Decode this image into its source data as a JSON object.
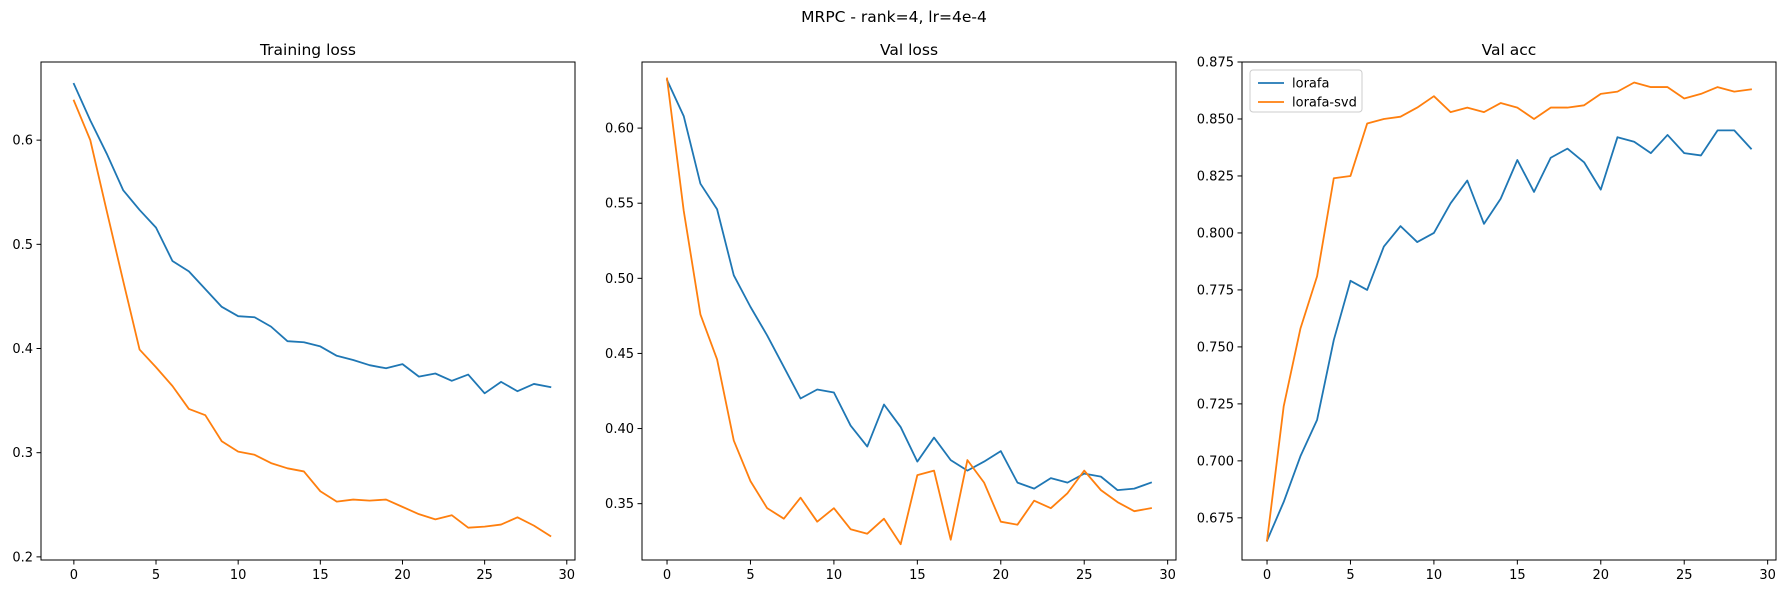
{
  "figure": {
    "suptitle": "MRPC - rank=4, lr=4e-4"
  },
  "colors": {
    "lorafa": "#1f77b4",
    "lorafa-svd": "#ff7f0e"
  },
  "chart_data": [
    {
      "type": "line",
      "title": "Training loss",
      "xlabel": "",
      "ylabel": "",
      "xlim": [
        -2,
        30.5
      ],
      "ylim": [
        0.197,
        0.675
      ],
      "xticks": [
        0,
        5,
        10,
        15,
        20,
        25,
        30
      ],
      "yticks": [
        0.2,
        0.3,
        0.4,
        0.5,
        0.6
      ],
      "ytick_labels": [
        "0.2",
        "0.3",
        "0.4",
        "0.5",
        "0.6"
      ],
      "grid": false,
      "legend": null,
      "x": [
        0,
        1,
        2,
        3,
        4,
        5,
        6,
        7,
        8,
        9,
        10,
        11,
        12,
        13,
        14,
        15,
        16,
        17,
        18,
        19,
        20,
        21,
        22,
        23,
        24,
        25,
        26,
        27,
        28,
        29
      ],
      "series": [
        {
          "name": "lorafa",
          "color": "#1f77b4",
          "values": [
            0.654,
            0.619,
            0.587,
            0.552,
            0.533,
            0.516,
            0.484,
            0.474,
            0.457,
            0.44,
            0.431,
            0.43,
            0.421,
            0.407,
            0.406,
            0.402,
            0.393,
            0.389,
            0.384,
            0.381,
            0.385,
            0.373,
            0.376,
            0.369,
            0.375,
            0.357,
            0.368,
            0.359,
            0.366,
            0.363
          ]
        },
        {
          "name": "lorafa-svd",
          "color": "#ff7f0e",
          "values": [
            0.638,
            0.6,
            0.532,
            0.465,
            0.399,
            0.382,
            0.364,
            0.342,
            0.336,
            0.311,
            0.301,
            0.298,
            0.29,
            0.285,
            0.282,
            0.263,
            0.253,
            0.255,
            0.254,
            0.255,
            0.248,
            0.241,
            0.236,
            0.24,
            0.228,
            0.229,
            0.231,
            0.238,
            0.23,
            0.22
          ]
        }
      ]
    },
    {
      "type": "line",
      "title": "Val loss",
      "xlabel": "",
      "ylabel": "",
      "xlim": [
        -1.5,
        30.5
      ],
      "ylim": [
        0.3125,
        0.644
      ],
      "xticks": [
        0,
        5,
        10,
        15,
        20,
        25,
        30
      ],
      "yticks": [
        0.35,
        0.4,
        0.45,
        0.5,
        0.55,
        0.6
      ],
      "ytick_labels": [
        "0.35",
        "0.40",
        "0.45",
        "0.50",
        "0.55",
        "0.60"
      ],
      "grid": false,
      "legend": null,
      "x": [
        0,
        1,
        2,
        3,
        4,
        5,
        6,
        7,
        8,
        9,
        10,
        11,
        12,
        13,
        14,
        15,
        16,
        17,
        18,
        19,
        20,
        21,
        22,
        23,
        24,
        25,
        26,
        27,
        28,
        29
      ],
      "series": [
        {
          "name": "lorafa",
          "color": "#1f77b4",
          "values": [
            0.632,
            0.608,
            0.563,
            0.546,
            0.502,
            0.481,
            0.462,
            0.441,
            0.42,
            0.426,
            0.424,
            0.402,
            0.388,
            0.416,
            0.401,
            0.378,
            0.394,
            0.379,
            0.372,
            0.378,
            0.385,
            0.364,
            0.36,
            0.367,
            0.364,
            0.37,
            0.368,
            0.359,
            0.36,
            0.364
          ]
        },
        {
          "name": "lorafa-svd",
          "color": "#ff7f0e",
          "values": [
            0.633,
            0.545,
            0.476,
            0.446,
            0.392,
            0.365,
            0.347,
            0.34,
            0.354,
            0.338,
            0.347,
            0.333,
            0.33,
            0.34,
            0.323,
            0.369,
            0.372,
            0.326,
            0.379,
            0.364,
            0.338,
            0.336,
            0.352,
            0.347,
            0.357,
            0.372,
            0.359,
            0.351,
            0.345,
            0.347
          ]
        }
      ]
    },
    {
      "type": "line",
      "title": "Val acc",
      "xlabel": "",
      "ylabel": "",
      "xlim": [
        -1.5,
        30.5
      ],
      "ylim": [
        0.6565,
        0.875
      ],
      "xticks": [
        0,
        5,
        10,
        15,
        20,
        25,
        30
      ],
      "yticks": [
        0.675,
        0.7,
        0.725,
        0.75,
        0.775,
        0.8,
        0.825,
        0.85,
        0.875
      ],
      "ytick_labels": [
        "0.675",
        "0.700",
        "0.725",
        "0.750",
        "0.775",
        "0.800",
        "0.825",
        "0.850",
        "0.875"
      ],
      "grid": false,
      "legend": "upper left",
      "x": [
        0,
        1,
        2,
        3,
        4,
        5,
        6,
        7,
        8,
        9,
        10,
        11,
        12,
        13,
        14,
        15,
        16,
        17,
        18,
        19,
        20,
        21,
        22,
        23,
        24,
        25,
        26,
        27,
        28,
        29
      ],
      "series": [
        {
          "name": "lorafa",
          "color": "#1f77b4",
          "values": [
            0.665,
            0.682,
            0.702,
            0.718,
            0.753,
            0.779,
            0.775,
            0.794,
            0.803,
            0.796,
            0.8,
            0.813,
            0.823,
            0.804,
            0.815,
            0.832,
            0.818,
            0.833,
            0.837,
            0.831,
            0.819,
            0.842,
            0.84,
            0.835,
            0.843,
            0.835,
            0.834,
            0.845,
            0.845,
            0.837
          ]
        },
        {
          "name": "lorafa-svd",
          "color": "#ff7f0e",
          "values": [
            0.665,
            0.724,
            0.758,
            0.781,
            0.824,
            0.825,
            0.848,
            0.85,
            0.851,
            0.855,
            0.86,
            0.853,
            0.855,
            0.853,
            0.857,
            0.855,
            0.85,
            0.855,
            0.855,
            0.856,
            0.861,
            0.862,
            0.866,
            0.864,
            0.864,
            0.859,
            0.861,
            0.864,
            0.862,
            0.863
          ]
        }
      ]
    }
  ]
}
